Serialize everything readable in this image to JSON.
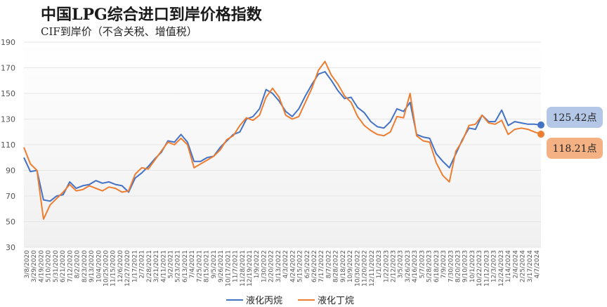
{
  "title": "中国LPG综合进口到岸价格指数",
  "subtitle": "CIF到岸价（不含关税、增值税）",
  "colors": {
    "propane": "#4472C4",
    "butane": "#ED7D31",
    "propane_box": "#B4C7E7",
    "butane_box": "#F4B183",
    "grid": "#e6e6e6",
    "axis_text": "#555555"
  },
  "callouts": {
    "propane_value": "125.42点",
    "butane_value": "118.21点"
  },
  "chart_data": {
    "type": "line",
    "title": "中国LPG综合进口到岸价格指数",
    "ylim": [
      30,
      190
    ],
    "yticks": [
      "190",
      "170",
      "150",
      "130",
      "110",
      "90",
      "70",
      "50",
      "30"
    ],
    "grid": true,
    "legend_position": "bottom",
    "x_tick_labels": [
      "3/8/2020",
      "3/29/2020",
      "4/19/2020",
      "5/10/2020",
      "5/31/2020",
      "6/21/2020",
      "7/12/2020",
      "8/2/2020",
      "8/23/2020",
      "9/13/2020",
      "10/4/2020",
      "10/25/2020",
      "11/15/2020",
      "12/6/2020",
      "12/27/2020",
      "1/17/2021",
      "2/7/2021",
      "2/28/2021",
      "3/21/2021",
      "4/11/2021",
      "5/2/2021",
      "5/23/2021",
      "6/13/2021",
      "7/4/2021",
      "7/25/2021",
      "8/15/2021",
      "9/5/2021",
      "9/26/2021",
      "10/17/2021",
      "11/7/2021",
      "11/28/2021",
      "12/19/2021",
      "1/9/2022",
      "1/30/2022",
      "2/20/2022",
      "3/13/2022",
      "4/3/2022",
      "4/24/2022",
      "5/15/2022",
      "6/5/2022",
      "6/26/2022",
      "7/17/2022",
      "8/7/2022",
      "8/28/2022",
      "9/18/2022",
      "10/9/2022",
      "10/30/2022",
      "11/20/2022",
      "12/11/2022",
      "1/1/2023",
      "1/22/2023",
      "2/12/2023",
      "3/5/2023",
      "3/26/2023",
      "4/16/2023",
      "5/7/2023",
      "5/28/2023",
      "6/18/2023",
      "7/9/2023",
      "7/30/2023",
      "8/20/2023",
      "9/10/2023",
      "10/1/2023",
      "10/22/2023",
      "11/12/2023",
      "12/3/2023",
      "12/24/2023",
      "1/14/2024",
      "2/4/2024",
      "2/25/2024",
      "3/17/2024",
      "4/7/2024"
    ],
    "series": [
      {
        "name": "液化丙烷",
        "color": "#4472C4",
        "end_label": "125.42点",
        "values": [
          100,
          89,
          90,
          67,
          66,
          70,
          71,
          81,
          76,
          78,
          79,
          82,
          80,
          81,
          79,
          78,
          73,
          84,
          88,
          93,
          99,
          104,
          113,
          112,
          118,
          112,
          97,
          97,
          100,
          101,
          108,
          113,
          118,
          120,
          130,
          132,
          138,
          153,
          150,
          144,
          136,
          132,
          138,
          148,
          157,
          165,
          167,
          160,
          152,
          146,
          147,
          139,
          135,
          128,
          124,
          123,
          128,
          138,
          136,
          143,
          118,
          116,
          115,
          103,
          97,
          92,
          103,
          114,
          123,
          122,
          133,
          128,
          128,
          137,
          125,
          128,
          127,
          126,
          126,
          125.42
        ]
      },
      {
        "name": "液化丁烷",
        "color": "#ED7D31",
        "end_label": "118.21点",
        "values": [
          108,
          95,
          90,
          52,
          63,
          68,
          73,
          79,
          74,
          75,
          78,
          76,
          74,
          77,
          76,
          73,
          74,
          87,
          92,
          91,
          98,
          105,
          112,
          110,
          115,
          110,
          92,
          95,
          98,
          101,
          106,
          114,
          117,
          125,
          131,
          129,
          133,
          147,
          154,
          147,
          133,
          130,
          132,
          143,
          154,
          168,
          175,
          164,
          157,
          148,
          143,
          132,
          125,
          121,
          118,
          117,
          120,
          132,
          131,
          150,
          117,
          113,
          112,
          96,
          86,
          81,
          105,
          113,
          125,
          126,
          133,
          127,
          126,
          129,
          118,
          122,
          123,
          122,
          120,
          118.21
        ]
      }
    ]
  }
}
